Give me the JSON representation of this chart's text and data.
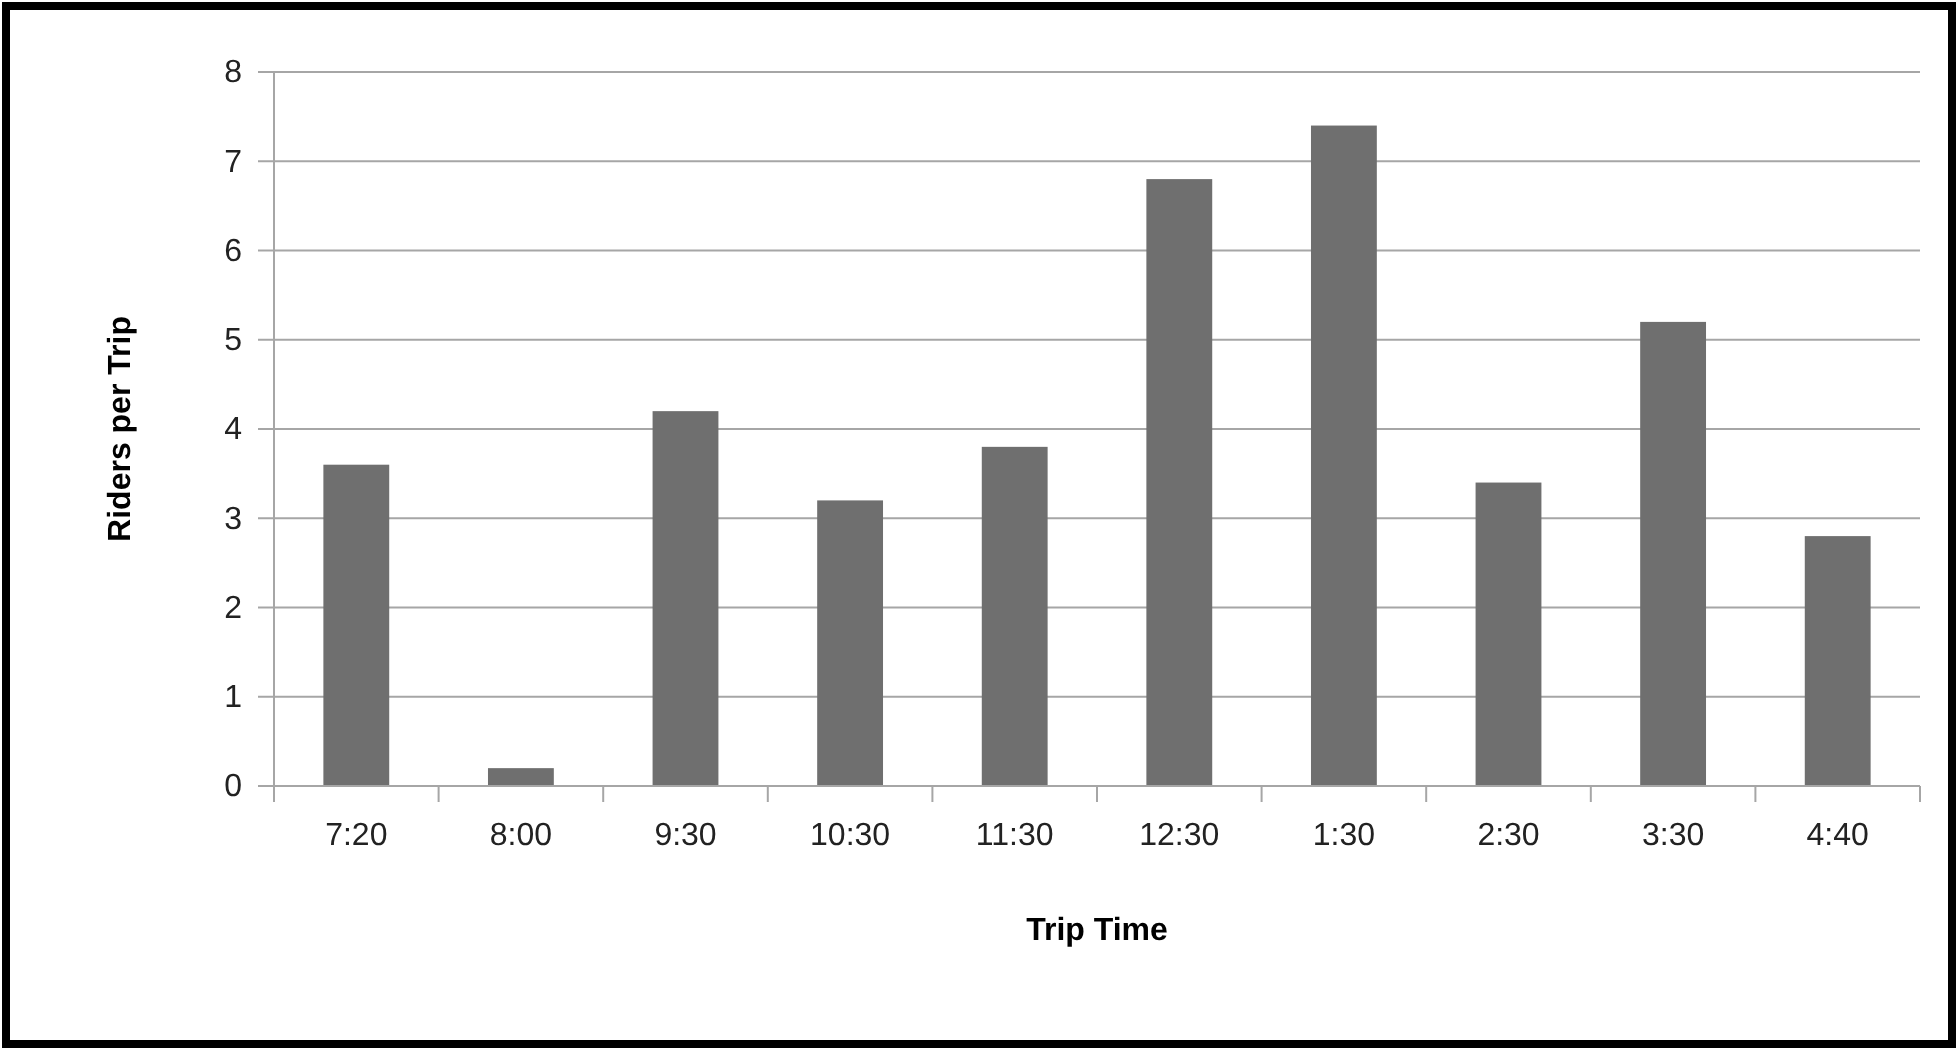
{
  "chart_data": {
    "type": "bar",
    "xlabel": "Trip Time",
    "ylabel": "Riders per Trip",
    "categories": [
      "7:20",
      "8:00",
      "9:30",
      "10:30",
      "11:30",
      "12:30",
      "1:30",
      "2:30",
      "3:30",
      "4:40"
    ],
    "values": [
      3.6,
      0.2,
      4.2,
      3.2,
      3.8,
      6.8,
      7.4,
      3.4,
      5.2,
      2.8
    ],
    "color": "#6f6f6f",
    "ylim": [
      0,
      8
    ],
    "yticks": [
      0,
      1,
      2,
      3,
      4,
      5,
      6,
      7,
      8
    ],
    "grid": "y"
  }
}
